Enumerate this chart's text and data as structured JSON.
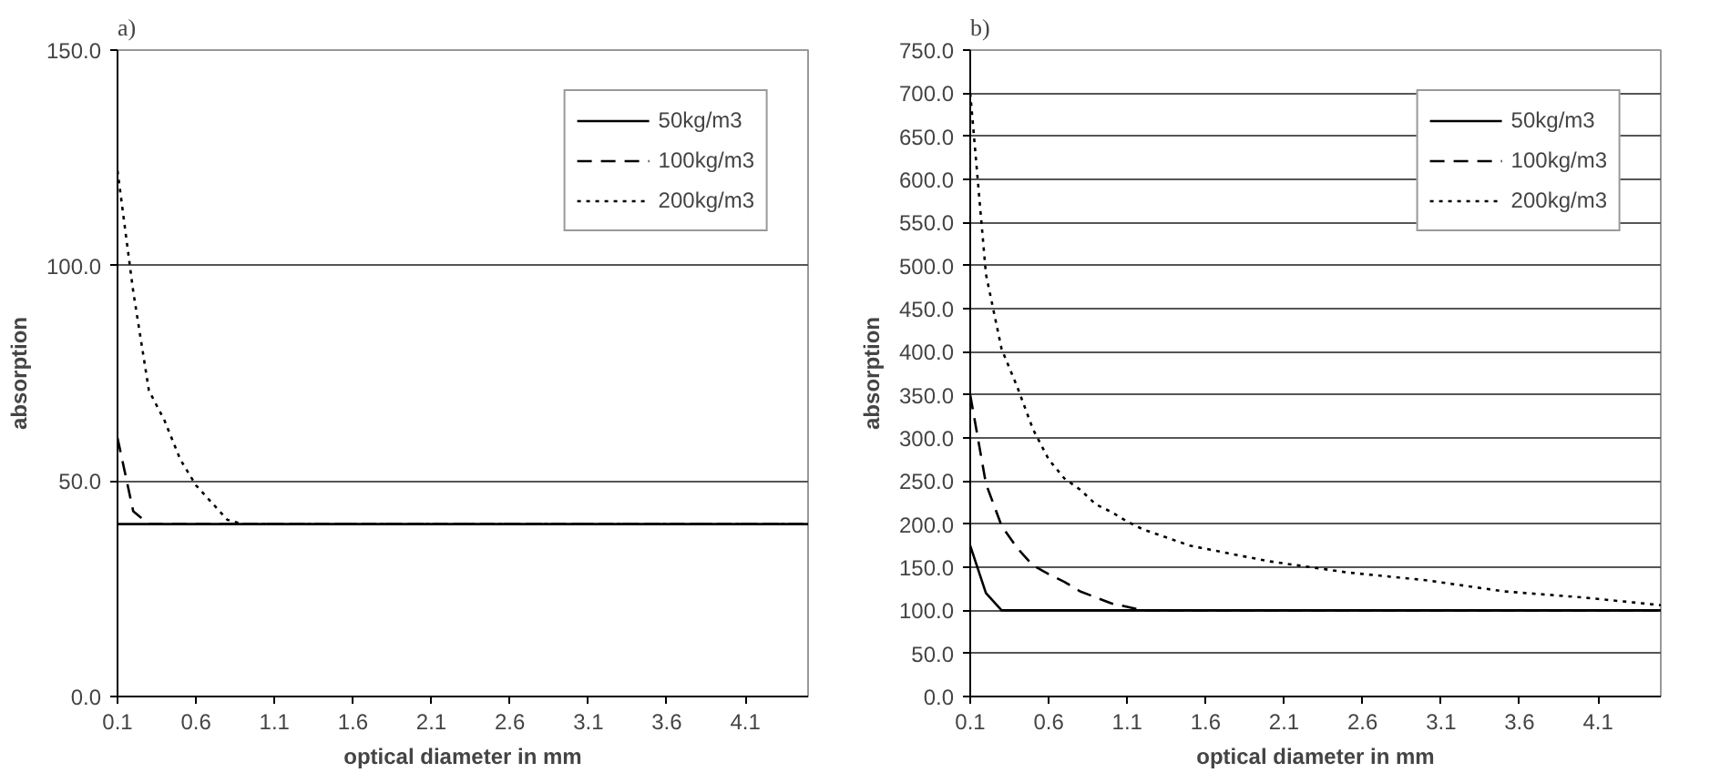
{
  "chart_data": [
    {
      "type": "line",
      "title": "a)",
      "xlabel": "optical diameter in mm",
      "ylabel": "absorption",
      "xlim": [
        0.1,
        4.5
      ],
      "xticks": [
        0.1,
        0.6,
        1.1,
        1.6,
        2.1,
        2.6,
        3.1,
        3.6,
        4.1
      ],
      "ylim": [
        0,
        150
      ],
      "yticks": [
        {
          "value": 0,
          "label": "0.0"
        },
        {
          "value": 50,
          "label": "50.0"
        },
        {
          "value": 100,
          "label": "100.0"
        },
        {
          "value": 150,
          "label": "150.0"
        }
      ],
      "grid": "y",
      "legend": "top right",
      "series": [
        {
          "name": "50kg/m3",
          "color": "#000000",
          "line_style": "solid",
          "x": [
            0.1,
            4.5
          ],
          "values": [
            40,
            40
          ]
        },
        {
          "name": "100kg/m3",
          "color": "#000000",
          "line_style": "dashed",
          "x": [
            0.1,
            0.2,
            0.3,
            4.5
          ],
          "values": [
            60,
            43,
            40,
            40
          ]
        },
        {
          "name": "200kg/m3",
          "color": "#000000",
          "line_style": "dotted",
          "x": [
            0.1,
            0.2,
            0.3,
            0.4,
            0.5,
            0.6,
            0.7,
            0.8,
            0.9,
            4.5
          ],
          "values": [
            122,
            94,
            71,
            64,
            55,
            49,
            45,
            41,
            40,
            40
          ]
        }
      ]
    },
    {
      "type": "line",
      "title": "b)",
      "xlabel": "optical diameter in mm",
      "ylabel": "absorption",
      "xlim": [
        0.1,
        4.5
      ],
      "xticks": [
        0.1,
        0.6,
        1.1,
        1.6,
        2.1,
        2.6,
        3.1,
        3.6,
        4.1
      ],
      "ylim": [
        0,
        750
      ],
      "yticks": [
        {
          "value": 0,
          "label": "0.0"
        },
        {
          "value": 50,
          "label": "50.0"
        },
        {
          "value": 100,
          "label": "100.0"
        },
        {
          "value": 150,
          "label": "150.0"
        },
        {
          "value": 200,
          "label": "200.0"
        },
        {
          "value": 250,
          "label": "250.0"
        },
        {
          "value": 300,
          "label": "300.0"
        },
        {
          "value": 350,
          "label": "350.0"
        },
        {
          "value": 400,
          "label": "400.0"
        },
        {
          "value": 450,
          "label": "450.0"
        },
        {
          "value": 500,
          "label": "500.0"
        },
        {
          "value": 550,
          "label": "550.0"
        },
        {
          "value": 600,
          "label": "600.0"
        },
        {
          "value": 650,
          "label": "650.0"
        },
        {
          "value": 700,
          "label": "700.0"
        },
        {
          "value": 750,
          "label": "750.0"
        }
      ],
      "grid": "y",
      "legend": "top right",
      "series": [
        {
          "name": "50kg/m3",
          "color": "#000000",
          "line_style": "solid",
          "x": [
            0.1,
            0.2,
            0.3,
            4.5
          ],
          "values": [
            175,
            120,
            100,
            100
          ]
        },
        {
          "name": "100kg/m3",
          "color": "#000000",
          "line_style": "dashed",
          "x": [
            0.1,
            0.2,
            0.3,
            0.4,
            0.5,
            0.6,
            0.7,
            0.8,
            0.9,
            1.0,
            1.1,
            1.2,
            4.5
          ],
          "values": [
            350,
            247,
            198,
            172,
            152,
            142,
            133,
            122,
            115,
            108,
            104,
            100,
            100
          ]
        },
        {
          "name": "200kg/m3",
          "color": "#000000",
          "line_style": "dotted",
          "x": [
            0.1,
            0.2,
            0.3,
            0.4,
            0.5,
            0.6,
            0.7,
            0.8,
            0.9,
            1.0,
            1.1,
            1.2,
            1.5,
            2.0,
            2.5,
            3.0,
            3.5,
            4.0,
            4.5
          ],
          "values": [
            700,
            490,
            403,
            359,
            310,
            275,
            253,
            240,
            223,
            214,
            203,
            194,
            175,
            157,
            144,
            135,
            122,
            115,
            106
          ]
        }
      ]
    }
  ]
}
